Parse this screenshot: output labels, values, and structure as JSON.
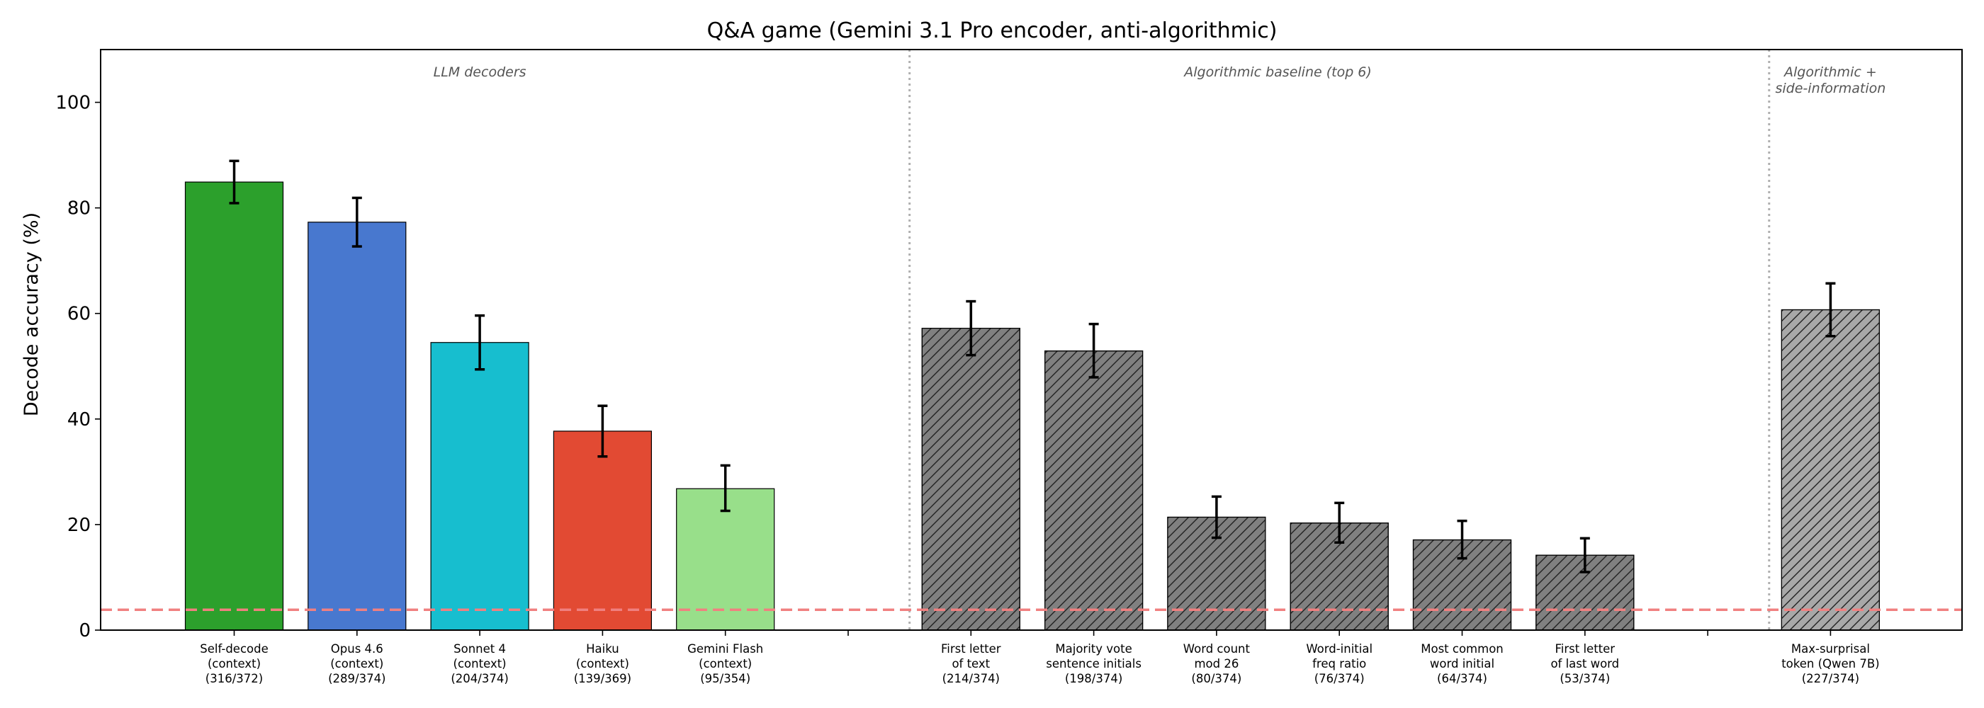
{
  "chart_data": {
    "type": "bar",
    "title": "Q&A game (Gemini 3.1 Pro encoder, anti-algorithmic)",
    "xlabel": "",
    "ylabel": "Decode accuracy (%)",
    "ylim": [
      0,
      110
    ],
    "yticks": [
      0,
      20,
      40,
      60,
      80,
      100
    ],
    "grid": false,
    "chance_level": 3.85,
    "chance_color": "#f08080",
    "bar_edge_color": "#000000",
    "groups": [
      {
        "label": "LLM decoders",
        "start": 0,
        "end": 4
      },
      {
        "label": "Algorithmic baseline (top 6)",
        "start": 6,
        "end": 11
      },
      {
        "label": "Algorithmic +\nside-information",
        "start": 13,
        "end": 13
      }
    ],
    "bars": [
      {
        "slot": 0,
        "label": "Self-decode\n(context)\n(316/372)",
        "value": 84.9,
        "err_low": 80.9,
        "err_high": 88.9,
        "color": "#2ca02c",
        "hatch": false
      },
      {
        "slot": 1,
        "label": "Opus 4.6\n(context)\n(289/374)",
        "value": 77.3,
        "err_low": 72.7,
        "err_high": 81.9,
        "color": "#4878cf",
        "hatch": false
      },
      {
        "slot": 2,
        "label": "Sonnet 4\n(context)\n(204/374)",
        "value": 54.5,
        "err_low": 49.4,
        "err_high": 59.6,
        "color": "#17becf",
        "hatch": false
      },
      {
        "slot": 3,
        "label": "Haiku\n(context)\n(139/369)",
        "value": 37.7,
        "err_low": 32.9,
        "err_high": 42.5,
        "color": "#e24a33",
        "hatch": false
      },
      {
        "slot": 4,
        "label": "Gemini Flash\n(context)\n(95/354)",
        "value": 26.8,
        "err_low": 22.6,
        "err_high": 31.2,
        "color": "#98df8a",
        "hatch": false
      },
      {
        "slot": 6,
        "label": "First letter\nof text\n(214/374)",
        "value": 57.2,
        "err_low": 52.1,
        "err_high": 62.3,
        "color": "#808080",
        "hatch": true
      },
      {
        "slot": 7,
        "label": "Majority vote\nsentence initials\n(198/374)",
        "value": 52.9,
        "err_low": 47.9,
        "err_high": 58.0,
        "color": "#808080",
        "hatch": true
      },
      {
        "slot": 8,
        "label": "Word count\nmod 26\n(80/374)",
        "value": 21.4,
        "err_low": 17.5,
        "err_high": 25.3,
        "color": "#808080",
        "hatch": true
      },
      {
        "slot": 9,
        "label": "Word-initial\nfreq ratio\n(76/374)",
        "value": 20.3,
        "err_low": 16.6,
        "err_high": 24.1,
        "color": "#808080",
        "hatch": true
      },
      {
        "slot": 10,
        "label": "Most common\nword initial\n(64/374)",
        "value": 17.1,
        "err_low": 13.6,
        "err_high": 20.7,
        "color": "#808080",
        "hatch": true
      },
      {
        "slot": 11,
        "label": "First letter\nof last word\n(53/374)",
        "value": 14.2,
        "err_low": 11.0,
        "err_high": 17.4,
        "color": "#808080",
        "hatch": true
      },
      {
        "slot": 13,
        "label": "Max-surprisal\ntoken (Qwen 7B)\n(227/374)",
        "value": 60.7,
        "err_low": 55.7,
        "err_high": 65.7,
        "color": "#a8a8a8",
        "hatch": true
      }
    ]
  }
}
